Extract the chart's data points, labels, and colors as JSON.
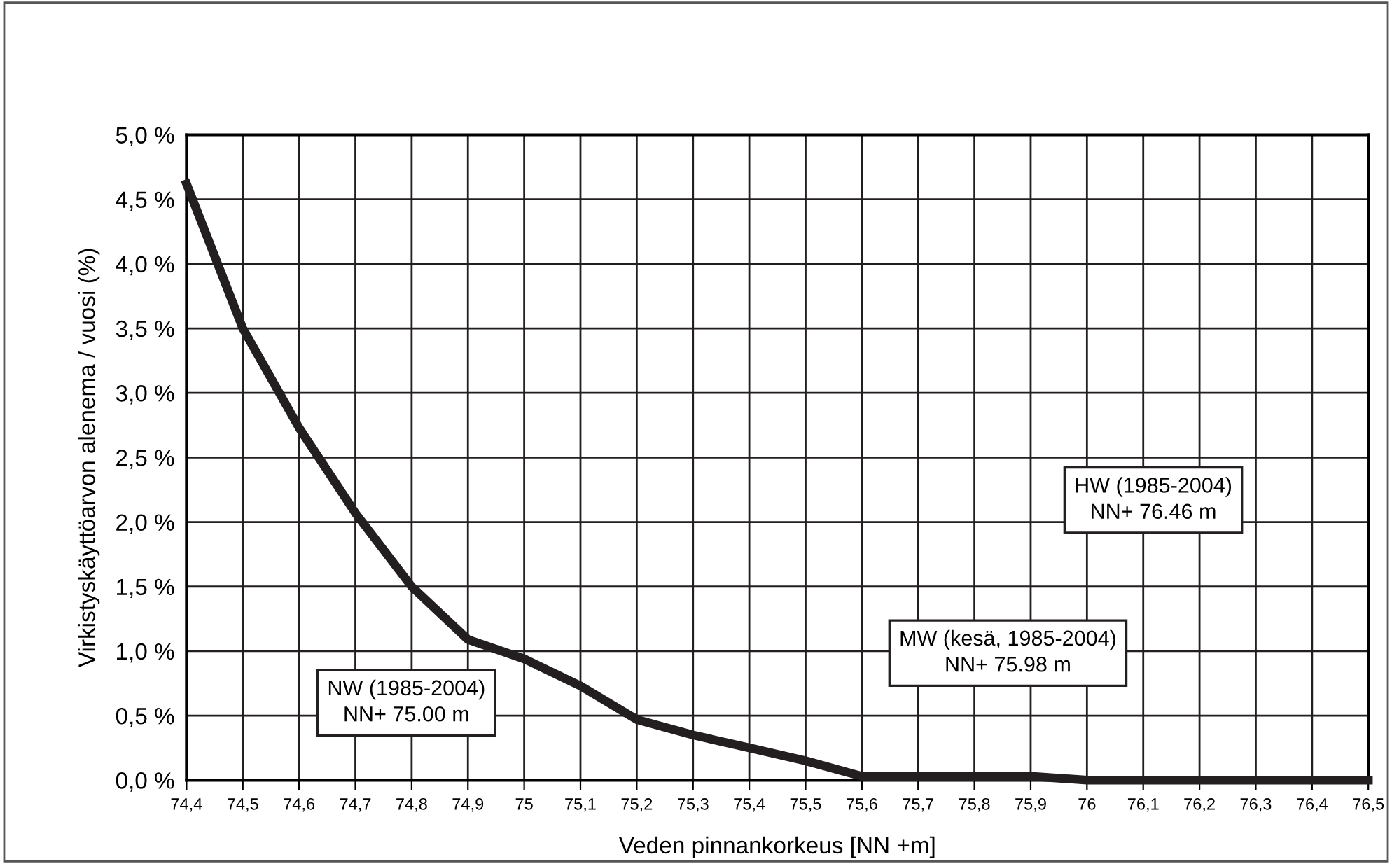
{
  "chart_data": {
    "type": "line",
    "xlabel": "Veden pinnankorkeus [NN +m]",
    "ylabel": "Virkistyskäyttöarvon alenema / vuosi (%)",
    "x": [
      74.4,
      74.5,
      74.6,
      74.7,
      74.8,
      74.9,
      75.0,
      75.1,
      75.2,
      75.3,
      75.4,
      75.5,
      75.6,
      75.7,
      75.8,
      75.9,
      76.0,
      76.1,
      76.2,
      76.3,
      76.4,
      76.5
    ],
    "series": [
      {
        "color": "#231f20",
        "values": [
          4.62,
          3.5,
          2.73,
          2.07,
          1.5,
          1.09,
          0.94,
          0.73,
          0.47,
          0.35,
          0.25,
          0.15,
          0.03,
          0.03,
          0.03,
          0.03,
          0.0,
          0.0,
          0.0,
          0.0,
          0.0,
          0.0
        ]
      }
    ],
    "xlim": [
      74.4,
      76.5
    ],
    "xticks": [
      {
        "value": 74.4,
        "label": "74,4"
      },
      {
        "value": 74.5,
        "label": "74,5"
      },
      {
        "value": 74.6,
        "label": "74,6"
      },
      {
        "value": 74.7,
        "label": "74,7"
      },
      {
        "value": 74.8,
        "label": "74,8"
      },
      {
        "value": 74.9,
        "label": "74,9"
      },
      {
        "value": 75.0,
        "label": "75"
      },
      {
        "value": 75.1,
        "label": "75,1"
      },
      {
        "value": 75.2,
        "label": "75,2"
      },
      {
        "value": 75.3,
        "label": "75,3"
      },
      {
        "value": 75.4,
        "label": "75,4"
      },
      {
        "value": 75.5,
        "label": "75,5"
      },
      {
        "value": 75.6,
        "label": "75,6"
      },
      {
        "value": 75.7,
        "label": "75,7"
      },
      {
        "value": 75.8,
        "label": "75,8"
      },
      {
        "value": 75.9,
        "label": "75,9"
      },
      {
        "value": 76.0,
        "label": "76"
      },
      {
        "value": 76.1,
        "label": "76,1"
      },
      {
        "value": 76.2,
        "label": "76,2"
      },
      {
        "value": 76.3,
        "label": "76,3"
      },
      {
        "value": 76.4,
        "label": "76,4"
      },
      {
        "value": 76.5,
        "label": "76,5"
      }
    ],
    "ylim": [
      0,
      5.0
    ],
    "yticks": [
      {
        "value": 0,
        "label": "0,0 %"
      },
      {
        "value": 0.5,
        "label": "0,5 %"
      },
      {
        "value": 1.0,
        "label": "1,0 %"
      },
      {
        "value": 1.5,
        "label": "1,5 %"
      },
      {
        "value": 2.0,
        "label": "2,0 %"
      },
      {
        "value": 2.5,
        "label": "2,5 %"
      },
      {
        "value": 3.0,
        "label": "3,0 %"
      },
      {
        "value": 3.5,
        "label": "3,5 %"
      },
      {
        "value": 4.0,
        "label": "4,0 %"
      },
      {
        "value": 4.5,
        "label": "4,5 %"
      },
      {
        "value": 5.0,
        "label": "5,0 %"
      }
    ],
    "grid": true,
    "legend": false,
    "marker": "none",
    "line_style": "solid",
    "annotations": [
      "NW (1985-2004)\nNN+ 75.00 m",
      "MW (kesä, 1985-2004)\nNN+ 75.98 m",
      "HW (1985-2004)\nNN+ 76.46 m"
    ]
  }
}
